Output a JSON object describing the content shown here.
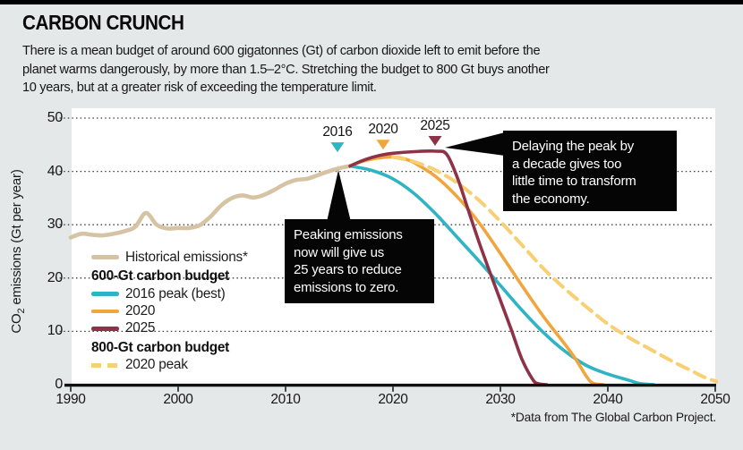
{
  "header": {
    "title": "CARBON CRUNCH",
    "subtitle_lines": [
      "There is a mean budget of around 600 gigatonnes (Gt) of carbon dioxide left to emit before the",
      "planet warms dangerously, by more than 1.5–2°C. Stretching the budget to 800 Gt buys another",
      "10 years, but at a greater risk of exceeding the temperature limit."
    ]
  },
  "footer": {
    "source_note": "*Data from The Global Carbon Project."
  },
  "legend": {
    "historical": "Historical emissions*",
    "group_600": "600-Gt carbon budget",
    "item_2016": "2016 peak (best)",
    "item_2020": "2020",
    "item_2025": "2025",
    "group_800": "800-Gt carbon budget",
    "item_2020_peak": "2020 peak"
  },
  "colors": {
    "background": "#e4e8e9",
    "plot_background": "#ffffff",
    "axis": "#111111",
    "grid_dots": "#3d3e3f",
    "text": "#141414",
    "historical": "#d5c3a4",
    "peak_2016": "#2fb4c4",
    "peak_2020": "#f1a63d",
    "peak_2025": "#8e3347",
    "peak_2020_800": "#f8d073",
    "callout_bg": "#050505",
    "callout_text": "#ffffff"
  },
  "chart_data": {
    "type": "line",
    "title": "CARBON CRUNCH",
    "xlabel": "",
    "ylabel": "CO2 emissions (Gt per year)",
    "ylabel_parts": {
      "prefix": "CO",
      "sub": "2",
      "suffix": " emissions (Gt per year)"
    },
    "xlim": [
      1990,
      2050
    ],
    "ylim": [
      0,
      50
    ],
    "x_ticks": [
      1990,
      2000,
      2010,
      2020,
      2030,
      2040,
      2050
    ],
    "y_ticks": [
      0,
      10,
      20,
      30,
      40,
      50
    ],
    "grid": "horizontal-dotted",
    "legend_position": "inside-left",
    "series": [
      {
        "name": "Historical emissions*",
        "color_key": "historical",
        "style": "solid",
        "width": 4.6,
        "points": [
          [
            1990,
            27.6
          ],
          [
            1991,
            28.3
          ],
          [
            1992,
            28.1
          ],
          [
            1993,
            28.0
          ],
          [
            1994,
            28.3
          ],
          [
            1995,
            28.8
          ],
          [
            1996,
            29.6
          ],
          [
            1997,
            32.2
          ],
          [
            1998,
            30.0
          ],
          [
            1999,
            29.3
          ],
          [
            2000,
            29.4
          ],
          [
            2001,
            29.4
          ],
          [
            2002,
            29.9
          ],
          [
            2003,
            31.5
          ],
          [
            2004,
            33.6
          ],
          [
            2005,
            35.0
          ],
          [
            2006,
            35.5
          ],
          [
            2007,
            35.1
          ],
          [
            2008,
            35.6
          ],
          [
            2009,
            36.6
          ],
          [
            2010,
            37.7
          ],
          [
            2011,
            38.4
          ],
          [
            2012,
            38.6
          ],
          [
            2013,
            39.3
          ],
          [
            2014,
            40.0
          ],
          [
            2015,
            40.6
          ],
          [
            2016,
            41.0
          ]
        ]
      },
      {
        "name": "2016 peak (best)",
        "group": "600-Gt carbon budget",
        "color_key": "peak_2016",
        "style": "solid",
        "width": 3.6,
        "points": [
          [
            2016,
            41.0
          ],
          [
            2018,
            40.2
          ],
          [
            2020,
            38.6
          ],
          [
            2022,
            35.8
          ],
          [
            2024,
            32.0
          ],
          [
            2026,
            27.6
          ],
          [
            2028,
            23.2
          ],
          [
            2030,
            18.6
          ],
          [
            2032,
            14.0
          ],
          [
            2034,
            9.8
          ],
          [
            2036,
            6.3
          ],
          [
            2038,
            3.6
          ],
          [
            2040,
            2.0
          ],
          [
            2042,
            0.8
          ],
          [
            2043,
            0.2
          ],
          [
            2044.3,
            0
          ]
        ]
      },
      {
        "name": "2020",
        "group": "600-Gt carbon budget",
        "color_key": "peak_2020",
        "style": "solid",
        "width": 3.6,
        "points": [
          [
            2016,
            41.0
          ],
          [
            2017,
            41.8
          ],
          [
            2018,
            42.3
          ],
          [
            2019,
            42.6
          ],
          [
            2020,
            42.7
          ],
          [
            2021,
            42.4
          ],
          [
            2022,
            41.6
          ],
          [
            2024,
            39.0
          ],
          [
            2026,
            35.2
          ],
          [
            2028,
            30.4
          ],
          [
            2030,
            24.6
          ],
          [
            2032,
            18.6
          ],
          [
            2034,
            12.8
          ],
          [
            2036,
            7.6
          ],
          [
            2037,
            4.8
          ],
          [
            2038,
            1.6
          ],
          [
            2038.6,
            0.3
          ],
          [
            2039.6,
            0
          ]
        ]
      },
      {
        "name": "2020 peak",
        "group": "800-Gt carbon budget",
        "color_key": "peak_2020_800",
        "style": "dashed",
        "width": 4,
        "points": [
          [
            2020,
            42.7
          ],
          [
            2022,
            41.8
          ],
          [
            2024,
            40.2
          ],
          [
            2026,
            37.8
          ],
          [
            2028,
            34.6
          ],
          [
            2030,
            30.6
          ],
          [
            2032,
            26.2
          ],
          [
            2034,
            21.8
          ],
          [
            2036,
            18.0
          ],
          [
            2038,
            14.6
          ],
          [
            2040,
            11.4
          ],
          [
            2042,
            8.8
          ],
          [
            2044,
            6.6
          ],
          [
            2046,
            4.4
          ],
          [
            2048,
            2.4
          ],
          [
            2049,
            1.4
          ],
          [
            2050.3,
            0.5
          ]
        ]
      },
      {
        "name": "2025",
        "group": "600-Gt carbon budget",
        "color_key": "peak_2025",
        "style": "solid",
        "width": 3.6,
        "points": [
          [
            2016,
            41.0
          ],
          [
            2017,
            41.9
          ],
          [
            2018,
            42.6
          ],
          [
            2019,
            43.1
          ],
          [
            2020,
            43.4
          ],
          [
            2022,
            43.7
          ],
          [
            2024,
            43.8
          ],
          [
            2025,
            43.2
          ],
          [
            2026,
            38.8
          ],
          [
            2027,
            32.8
          ],
          [
            2028,
            26.8
          ],
          [
            2029,
            21.2
          ],
          [
            2030,
            15.8
          ],
          [
            2031,
            10.4
          ],
          [
            2032,
            4.8
          ],
          [
            2033,
            1.0
          ],
          [
            2033.5,
            0.2
          ],
          [
            2034.3,
            0
          ]
        ]
      }
    ],
    "peak_markers": [
      {
        "label": "2016",
        "year": 2014.83,
        "apex_value": 43.6,
        "color_key": "peak_2016"
      },
      {
        "label": "2020",
        "year": 2019.08,
        "apex_value": 44.1,
        "color_key": "peak_2020"
      },
      {
        "label": "2025",
        "year": 2023.92,
        "apex_value": 44.8,
        "color_key": "peak_2025"
      }
    ],
    "annotations": [
      {
        "id": "peak-now",
        "lines": [
          "Peaking emissions",
          "now will give us",
          "25 years to reduce",
          "emissions to zero."
        ]
      },
      {
        "id": "delay-peak",
        "lines": [
          "Delaying the peak by",
          "a decade gives too",
          "little time to transform",
          "the economy."
        ]
      }
    ]
  }
}
